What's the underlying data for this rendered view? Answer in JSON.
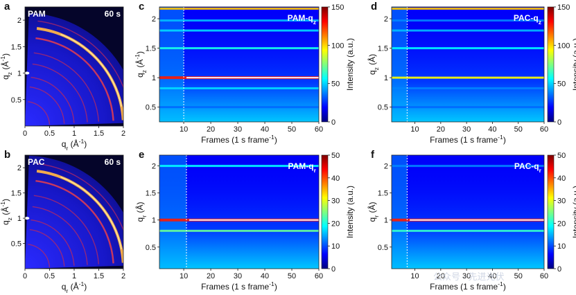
{
  "chart_data": [
    {
      "panel_letter": "a",
      "type": "heatmap",
      "label": "PAM",
      "time": "60 s",
      "xlabel": "q_r (Å^-1)",
      "ylabel": "q_z (Å^-1)",
      "xlim": [
        0,
        2
      ],
      "ylim": [
        0,
        2.25
      ],
      "xticks": [
        "0",
        "0.5",
        "1",
        "1.5",
        "2"
      ],
      "yticks": [
        "0.5",
        "1",
        "1.5",
        "2"
      ],
      "rings": [
        0.5,
        0.8,
        1.0,
        1.27,
        1.5,
        1.8,
        2.0,
        2.15
      ],
      "strong_rings": [
        2.0,
        1.8
      ]
    },
    {
      "panel_letter": "b",
      "type": "heatmap",
      "label": "PAC",
      "time": "60 s",
      "xlabel": "q_r (Å^-1)",
      "ylabel": "q_z (Å^-1)",
      "xlim": [
        0,
        2
      ],
      "ylim": [
        0,
        2.25
      ],
      "xticks": [
        "0",
        "0.5",
        "1",
        "1.5",
        "2"
      ],
      "yticks": [
        "0.5",
        "1",
        "1.5",
        "2"
      ],
      "rings": [
        0.5,
        0.8,
        1.0,
        1.27,
        1.5,
        1.8,
        2.0,
        2.15
      ],
      "strong_rings": [
        2.0,
        1.8
      ]
    },
    {
      "panel_letter": "c",
      "type": "heatmap",
      "label": "PAM-q_z",
      "xlabel": "Frames (1 s frame^-1)",
      "ylabel": "q_z (Å^-1)",
      "colorbar_label": "Intensity (a.u.)",
      "xlim": [
        1,
        60
      ],
      "ylim": [
        0.25,
        2.2
      ],
      "xticks": [
        "10",
        "20",
        "30",
        "40",
        "50",
        "60"
      ],
      "yticks": [
        "0.5",
        "1",
        "1.5",
        "2"
      ],
      "cbar_ticks": [
        "0",
        "50",
        "100",
        "150"
      ],
      "cbar_range": [
        0,
        150
      ],
      "dashed_frame": 10,
      "bands": [
        {
          "q": 2.17,
          "value": 120
        },
        {
          "q": 1.97,
          "value": 55
        },
        {
          "q": 1.8,
          "value": 60
        },
        {
          "q": 1.5,
          "value": 70
        },
        {
          "q": 1.0,
          "value": 150
        },
        {
          "q": 0.82,
          "value": 60
        },
        {
          "q": 0.5,
          "value": 40
        }
      ]
    },
    {
      "panel_letter": "d",
      "type": "heatmap",
      "label": "PAC-q_z",
      "xlabel": "Frames (1 s frame^-1)",
      "ylabel": "q_z (Å)",
      "colorbar_label": "Intensity (a.u.)",
      "xlim": [
        1,
        60
      ],
      "ylim": [
        0.25,
        2.2
      ],
      "xticks": [
        "10",
        "20",
        "30",
        "40",
        "50",
        "60"
      ],
      "yticks": [
        "0.5",
        "1",
        "1.5",
        "2"
      ],
      "cbar_ticks": [
        "0",
        "50",
        "100",
        "150"
      ],
      "cbar_range": [
        0,
        150
      ],
      "dashed_frame": 7,
      "bands": [
        {
          "q": 2.17,
          "value": 120
        },
        {
          "q": 1.97,
          "value": 45
        },
        {
          "q": 1.8,
          "value": 55
        },
        {
          "q": 1.5,
          "value": 65
        },
        {
          "q": 1.0,
          "value": 110
        },
        {
          "q": 0.82,
          "value": 45
        },
        {
          "q": 0.5,
          "value": 40
        }
      ]
    },
    {
      "panel_letter": "e",
      "type": "heatmap",
      "label": "PAM-q_r",
      "xlabel": "Frames (1 s frame^-1)",
      "ylabel": "q_r (Å)",
      "colorbar_label": "Intensity (a.u.)",
      "xlim": [
        1,
        60
      ],
      "ylim": [
        0.1,
        2.2
      ],
      "xticks": [
        "10",
        "20",
        "30",
        "40",
        "50",
        "60"
      ],
      "yticks": [
        "0.5",
        "1",
        "1.5",
        "2"
      ],
      "cbar_ticks": [
        "0",
        "10",
        "20",
        "30",
        "40",
        "50"
      ],
      "cbar_range": [
        0,
        50
      ],
      "dashed_frame": 11,
      "bands": [
        {
          "q": 2.0,
          "value": 22
        },
        {
          "q": 1.0,
          "value": 50
        },
        {
          "q": 0.8,
          "value": 28
        }
      ]
    },
    {
      "panel_letter": "f",
      "type": "heatmap",
      "label": "PAC-q_r",
      "xlabel": "Frames (1 s frame^-1)",
      "ylabel": "q_r (Å)",
      "colorbar_label": "Intensity (a.u.)",
      "xlim": [
        1,
        60
      ],
      "ylim": [
        0.1,
        2.2
      ],
      "xticks": [
        "10",
        "20",
        "30",
        "40",
        "50",
        "60"
      ],
      "yticks": [
        "0.5",
        "1",
        "1.5",
        "2"
      ],
      "cbar_ticks": [
        "0",
        "10",
        "20",
        "30",
        "40",
        "50"
      ],
      "cbar_range": [
        0,
        50
      ],
      "dashed_frame": 7,
      "bands": [
        {
          "q": 2.0,
          "value": 15
        },
        {
          "q": 1.0,
          "value": 50
        },
        {
          "q": 0.8,
          "value": 25
        }
      ]
    }
  ],
  "watermark": "公众号 · 先进光伏",
  "colors": {
    "jet": [
      "#00007f",
      "#0000ff",
      "#007fff",
      "#00ffff",
      "#7fff7f",
      "#ffff00",
      "#ff7f00",
      "#ff0000",
      "#7f0000"
    ],
    "tick_color": "#111111"
  }
}
